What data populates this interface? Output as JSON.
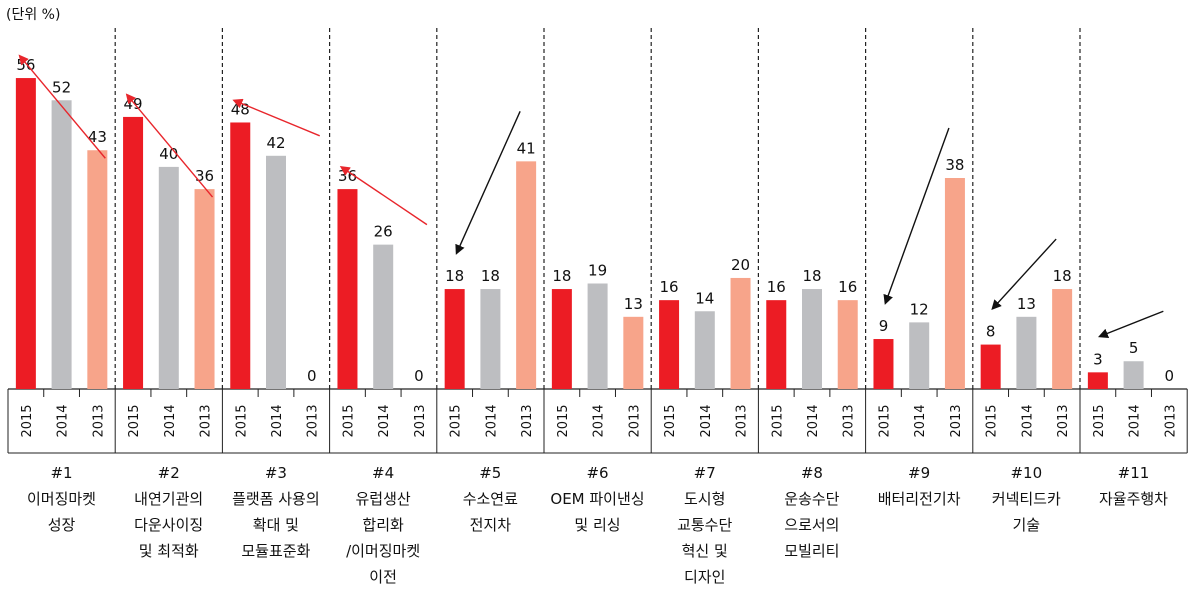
{
  "chart_data": {
    "type": "bar",
    "unit_label": "(단위 %)",
    "year_labels": [
      "2015",
      "2014",
      "2013"
    ],
    "series": [
      {
        "name": "2015",
        "color": "#ec1c24"
      },
      {
        "name": "2014",
        "color": "#bdbec1"
      },
      {
        "name": "2013",
        "color": "#f7a48a"
      }
    ],
    "ylim": [
      0,
      60
    ],
    "categories": [
      {
        "number": "#1",
        "lines": [
          "이머징마켓",
          "성장"
        ],
        "values": [
          56,
          52,
          43
        ],
        "trend": "up"
      },
      {
        "number": "#2",
        "lines": [
          "내연기관의",
          "다운사이징",
          "및 최적화"
        ],
        "values": [
          49,
          40,
          36
        ],
        "trend": "up"
      },
      {
        "number": "#3",
        "lines": [
          "플랫폼 사용의",
          "확대 및",
          "모듈표준화"
        ],
        "values": [
          48,
          42,
          0
        ],
        "trend": "up"
      },
      {
        "number": "#4",
        "lines": [
          "유럽생산",
          "합리화",
          "/이머징마켓",
          "이전"
        ],
        "values": [
          36,
          26,
          0
        ],
        "trend": "up"
      },
      {
        "number": "#5",
        "lines": [
          "수소연료",
          "전지차"
        ],
        "values": [
          18,
          18,
          41
        ],
        "trend": "down"
      },
      {
        "number": "#6",
        "lines": [
          "OEM 파이낸싱",
          "및 리싱"
        ],
        "values": [
          18,
          19,
          13
        ],
        "trend": "none"
      },
      {
        "number": "#7",
        "lines": [
          "도시형",
          "교통수단",
          "혁신 및",
          "디자인"
        ],
        "values": [
          16,
          14,
          20
        ],
        "trend": "none"
      },
      {
        "number": "#8",
        "lines": [
          "운송수단",
          "으로서의",
          "모빌리티"
        ],
        "values": [
          16,
          18,
          16
        ],
        "trend": "none"
      },
      {
        "number": "#9",
        "lines": [
          "배터리전기차"
        ],
        "values": [
          9,
          12,
          38
        ],
        "trend": "down"
      },
      {
        "number": "#10",
        "lines": [
          "커넥티드카",
          "기술"
        ],
        "values": [
          8,
          13,
          18
        ],
        "trend": "down"
      },
      {
        "number": "#11",
        "lines": [
          "자율주행차"
        ],
        "values": [
          3,
          5,
          0
        ],
        "trend": "down"
      }
    ]
  }
}
